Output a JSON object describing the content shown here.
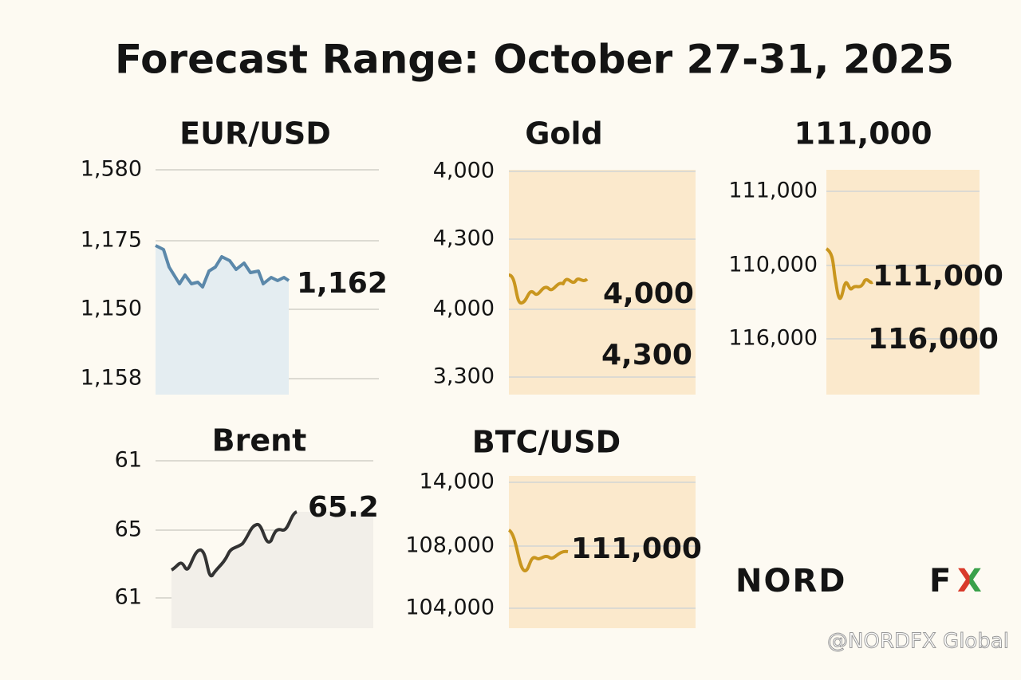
{
  "title": "Forecast Range: October 27-31, 2025",
  "panels": [
    {
      "title": "EUR/USD",
      "ticks": [
        "1,580",
        "1,175",
        "1,150",
        "1,158"
      ],
      "callouts": [
        "1,162"
      ]
    },
    {
      "title": "Gold",
      "ticks": [
        "4,000",
        "4,300",
        "4,000",
        "3,300"
      ],
      "callouts": [
        "4,000",
        "4,300"
      ]
    },
    {
      "title": "111,000",
      "ticks": [
        "111,000",
        "110,000",
        "116,000"
      ],
      "callouts": [
        "111,000",
        "116,000"
      ]
    },
    {
      "title": "Brent",
      "ticks": [
        "61",
        "65",
        "61"
      ],
      "callouts": [
        "65.2"
      ]
    },
    {
      "title": "BTC/USD",
      "ticks": [
        "14,000",
        "108,000",
        "104,000"
      ],
      "callouts": [
        "111,000"
      ]
    }
  ],
  "logo": {
    "word": "NORD",
    "f": "F",
    "x": "X"
  },
  "watermark": "@NORDFX Global"
}
